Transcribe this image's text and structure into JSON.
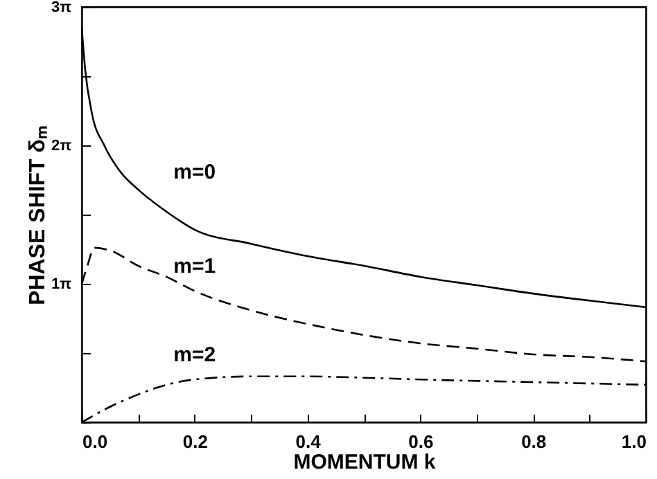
{
  "chart_data": {
    "type": "line",
    "xlabel": "MOMENTUM  k",
    "ylabel": "PHASE SHIFT  δₘ",
    "series": [
      {
        "name": "m=0",
        "color": "#000000",
        "line_style": "solid",
        "x": [
          0,
          0.006,
          0.018,
          0.04,
          0.068,
          0.1,
          0.15,
          0.2,
          0.3,
          0.4,
          0.5,
          0.6,
          0.7,
          0.8,
          0.9,
          1.0
        ],
        "values": [
          8.95,
          8.01,
          7.01,
          6.28,
          5.69,
          5.28,
          4.78,
          4.37,
          4.05,
          3.77,
          3.55,
          3.3,
          3.11,
          2.92,
          2.76,
          2.61
        ]
      },
      {
        "name": "m=1",
        "color": "#000000",
        "line_style": "dashed",
        "x": [
          0,
          0.01,
          0.022,
          0.05,
          0.1,
          0.15,
          0.2,
          0.3,
          0.4,
          0.5,
          0.6,
          0.7,
          0.8,
          0.9,
          1.0
        ],
        "values": [
          3.14,
          3.55,
          3.96,
          3.9,
          3.55,
          3.3,
          2.98,
          2.54,
          2.23,
          1.98,
          1.79,
          1.67,
          1.54,
          1.48,
          1.38
        ]
      },
      {
        "name": "m=2",
        "color": "#000000",
        "line_style": "dotted",
        "x": [
          0,
          0.05,
          0.1,
          0.15,
          0.2,
          0.3,
          0.4,
          0.5,
          0.6,
          0.8,
          1.0
        ],
        "values": [
          0,
          0.35,
          0.63,
          0.85,
          0.97,
          1.04,
          1.04,
          1.01,
          0.97,
          0.91,
          0.85
        ]
      }
    ],
    "xlim": [
      0,
      1
    ],
    "ylim": [
      0,
      9.4248
    ],
    "xticks": [
      {
        "value": 0,
        "label": "0.0"
      },
      {
        "value": 0.1,
        "label": null
      },
      0.2,
      {
        "value": 0.3,
        "label": null
      },
      0.4,
      {
        "value": 0.5,
        "label": null
      },
      0.6,
      {
        "value": 0.7,
        "label": null
      },
      0.8,
      {
        "value": 0.9,
        "label": null
      },
      {
        "value": 1,
        "label": "1.0"
      }
    ],
    "yticks": [
      {
        "value": 0,
        "label": null
      },
      {
        "value": 1.5708,
        "label": null
      },
      {
        "value": 3.1416,
        "label": "1π"
      },
      {
        "value": 4.7124,
        "label": null
      },
      {
        "value": 6.2832,
        "label": "2π"
      },
      {
        "value": 7.854,
        "label": null
      },
      {
        "value": 9.4248,
        "label": "3π"
      }
    ],
    "grid": false,
    "marker": "none"
  }
}
